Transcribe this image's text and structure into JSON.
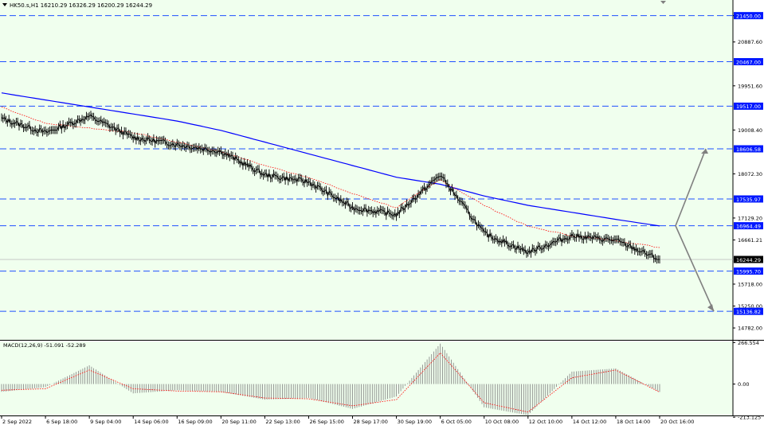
{
  "header": {
    "symbol_info": "HK50.s,H1  16210.29  16326.29  16200.29  16244.29",
    "macd_label": "MACD(12,26,9) -51.091 -52.289"
  },
  "colors": {
    "background": "#f0ffee",
    "price_line": "#000000",
    "ma_slow": "#0000ff",
    "ma_fast": "#ff0000",
    "level_line": "#1e50ff",
    "level_badge": "#0018ff",
    "macd_hist": "#808080",
    "macd_signal": "#ff0000",
    "arrow": "#808080"
  },
  "price_scale": {
    "ticks": [
      "21450.00",
      "20887.60",
      "19951.60",
      "19008.40",
      "18072.30",
      "17129.20",
      "16661.21",
      "15718.00",
      "15250.00",
      "14782.00"
    ],
    "current_price": "16244.29"
  },
  "levels": [
    {
      "label": "21450.00",
      "value": 21450.0
    },
    {
      "label": "20467.00",
      "value": 20467.0
    },
    {
      "label": "19517.00",
      "value": 19517.0
    },
    {
      "label": "18606.58",
      "value": 18606.58
    },
    {
      "label": "17535.97",
      "value": 17535.97
    },
    {
      "label": "16964.49",
      "value": 16964.49
    },
    {
      "label": "15995.70",
      "value": 15995.7
    },
    {
      "label": "15136.82",
      "value": 15136.82
    }
  ],
  "macd_scale": {
    "ticks": [
      "266.554",
      "0.00",
      "-213.125"
    ]
  },
  "time_axis": {
    "labels": [
      "2 Sep 2022",
      "6 Sep 18:00",
      "9 Sep 04:00",
      "14 Sep 06:00",
      "16 Sep 09:00",
      "20 Sep 11:00",
      "22 Sep 13:00",
      "26 Sep 15:00",
      "28 Sep 17:00",
      "30 Sep 19:00",
      "6 Oct 05:00",
      "10 Oct 08:00",
      "12 Oct 10:00",
      "14 Oct 12:00",
      "18 Oct 14:00",
      "20 Oct 16:00"
    ]
  },
  "chart_data": {
    "type": "line",
    "symbol": "HK50.s",
    "timeframe": "H1",
    "x": [
      "2 Sep 2022",
      "6 Sep 18:00",
      "9 Sep 04:00",
      "14 Sep 06:00",
      "16 Sep 09:00",
      "20 Sep 11:00",
      "22 Sep 13:00",
      "26 Sep 15:00",
      "28 Sep 17:00",
      "30 Sep 19:00",
      "6 Oct 05:00",
      "10 Oct 08:00",
      "12 Oct 10:00",
      "14 Oct 12:00",
      "18 Oct 14:00",
      "20 Oct 16:00"
    ],
    "series": [
      {
        "values": [
          19250,
          18950,
          19300,
          18850,
          18700,
          18550,
          18050,
          17900,
          17350,
          17200,
          18050,
          16800,
          16400,
          16750,
          16650,
          16244
        ]
      },
      {
        "values": [
          19500,
          19150,
          19050,
          18950,
          18750,
          18550,
          18250,
          18000,
          17650,
          17350,
          17950,
          17400,
          16950,
          16750,
          16650,
          16500
        ]
      },
      {
        "values": [
          19800,
          19650,
          19500,
          19350,
          19200,
          19000,
          18750,
          18500,
          18250,
          18000,
          17850,
          17600,
          17400,
          17250,
          17100,
          16960
        ]
      }
    ],
    "macd": {
      "ticks": [
        "266.554",
        "0.00",
        "-213.125"
      ],
      "histogram": [
        -50,
        -20,
        120,
        -60,
        -40,
        -50,
        -100,
        -90,
        -160,
        -80,
        260,
        -150,
        -200,
        80,
        100,
        -51
      ],
      "signal": [
        -40,
        -30,
        90,
        -30,
        -45,
        -50,
        -90,
        -95,
        -140,
        -100,
        200,
        -120,
        -180,
        40,
        90,
        -52
      ]
    },
    "current_price": 16244.29
  }
}
